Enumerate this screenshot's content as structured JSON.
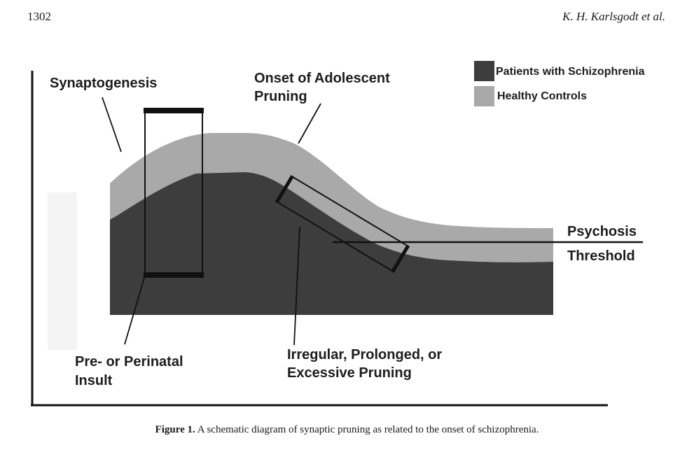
{
  "header": {
    "page_number": "1302",
    "running_head": "K. H. Karlsgodt et al."
  },
  "figure": {
    "legend": {
      "patients": {
        "label": "Patients with Schizophrenia",
        "color": "#3d3d3d"
      },
      "controls": {
        "label": "Healthy Controls",
        "color": "#a9a9a9"
      }
    },
    "annotations": {
      "synaptogenesis": "Synaptogenesis",
      "onset_line1": "Onset of Adolescent",
      "onset_line2": "Pruning",
      "psychosis": "Psychosis",
      "threshold": "Threshold",
      "insult_line1": "Pre- or Perinatal",
      "insult_line2": "Insult",
      "irregular_line1": "Irregular, Prolonged, or",
      "irregular_line2": "Excessive Pruning"
    }
  },
  "caption": {
    "label": "Figure 1.",
    "text": " A schematic diagram of synaptic pruning as related to the onset of schizophrenia."
  }
}
